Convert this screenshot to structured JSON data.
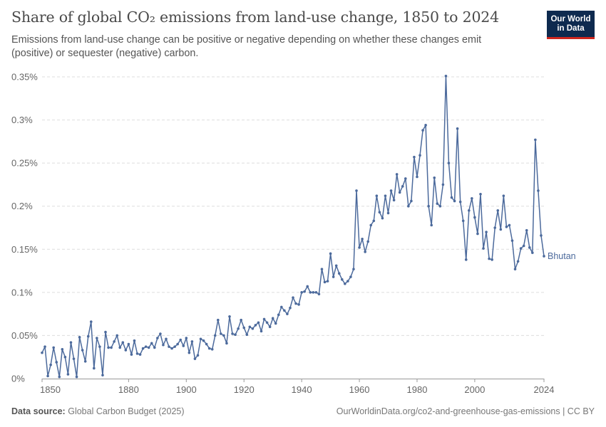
{
  "header": {
    "title": "Share of global CO₂ emissions from land-use change, 1850 to 2024",
    "subtitle": "Emissions from land-use change can be positive or negative depending on whether these changes emit (positive) or sequester (negative) carbon."
  },
  "logo": {
    "line1": "Our World",
    "line2": "in Data"
  },
  "footer": {
    "source_label": "Data source:",
    "source_value": "Global Carbon Budget (2025)",
    "url": "OurWorldinData.org/co2-and-greenhouse-gas-emissions | CC BY"
  },
  "colors": {
    "series": "#4c6a9c",
    "title": "#4a4a4a",
    "logo_bg": "#0e2a4f",
    "logo_accent": "#ce261e"
  },
  "chart_data": {
    "type": "line",
    "title": "Share of global CO₂ emissions from land-use change, 1850 to 2024",
    "xlabel": "",
    "ylabel": "",
    "xlim": [
      1850,
      2024
    ],
    "ylim": [
      0,
      0.35
    ],
    "x_ticks": [
      1850,
      1880,
      1900,
      1920,
      1940,
      1960,
      1980,
      2000,
      2024
    ],
    "y_ticks": [
      0,
      0.05,
      0.1,
      0.15,
      0.2,
      0.25,
      0.3,
      0.35
    ],
    "y_tick_labels": [
      "0%",
      "0.05%",
      "0.1%",
      "0.15%",
      "0.2%",
      "0.25%",
      "0.3%",
      "0.35%"
    ],
    "grid": true,
    "series": [
      {
        "name": "Bhutan",
        "x": [
          1850,
          1851,
          1852,
          1853,
          1854,
          1855,
          1856,
          1857,
          1858,
          1859,
          1860,
          1861,
          1862,
          1863,
          1864,
          1865,
          1866,
          1867,
          1868,
          1869,
          1870,
          1871,
          1872,
          1873,
          1874,
          1875,
          1876,
          1877,
          1878,
          1879,
          1880,
          1881,
          1882,
          1883,
          1884,
          1885,
          1886,
          1887,
          1888,
          1889,
          1890,
          1891,
          1892,
          1893,
          1894,
          1895,
          1896,
          1897,
          1898,
          1899,
          1900,
          1901,
          1902,
          1903,
          1904,
          1905,
          1906,
          1907,
          1908,
          1909,
          1910,
          1911,
          1912,
          1913,
          1914,
          1915,
          1916,
          1917,
          1918,
          1919,
          1920,
          1921,
          1922,
          1923,
          1924,
          1925,
          1926,
          1927,
          1928,
          1929,
          1930,
          1931,
          1932,
          1933,
          1934,
          1935,
          1936,
          1937,
          1938,
          1939,
          1940,
          1941,
          1942,
          1943,
          1944,
          1945,
          1946,
          1947,
          1948,
          1949,
          1950,
          1951,
          1952,
          1953,
          1954,
          1955,
          1956,
          1957,
          1958,
          1959,
          1960,
          1961,
          1962,
          1963,
          1964,
          1965,
          1966,
          1967,
          1968,
          1969,
          1970,
          1971,
          1972,
          1973,
          1974,
          1975,
          1976,
          1977,
          1978,
          1979,
          1980,
          1981,
          1982,
          1983,
          1984,
          1985,
          1986,
          1987,
          1988,
          1989,
          1990,
          1991,
          1992,
          1993,
          1994,
          1995,
          1996,
          1997,
          1998,
          1999,
          2000,
          2001,
          2002,
          2003,
          2004,
          2005,
          2006,
          2007,
          2008,
          2009,
          2010,
          2011,
          2012,
          2013,
          2014,
          2015,
          2016,
          2017,
          2018,
          2019,
          2020,
          2021,
          2022,
          2023,
          2024
        ],
        "values": [
          0.03,
          0.037,
          0.003,
          0.016,
          0.036,
          0.019,
          0.002,
          0.034,
          0.025,
          0.005,
          0.042,
          0.023,
          0.002,
          0.048,
          0.033,
          0.02,
          0.049,
          0.066,
          0.012,
          0.047,
          0.037,
          0.004,
          0.054,
          0.036,
          0.036,
          0.043,
          0.05,
          0.036,
          0.042,
          0.033,
          0.04,
          0.028,
          0.044,
          0.029,
          0.028,
          0.035,
          0.037,
          0.036,
          0.041,
          0.036,
          0.047,
          0.052,
          0.039,
          0.046,
          0.037,
          0.035,
          0.037,
          0.04,
          0.045,
          0.038,
          0.047,
          0.03,
          0.043,
          0.023,
          0.027,
          0.046,
          0.044,
          0.04,
          0.035,
          0.034,
          0.05,
          0.068,
          0.052,
          0.05,
          0.041,
          0.072,
          0.052,
          0.051,
          0.058,
          0.068,
          0.059,
          0.051,
          0.06,
          0.058,
          0.062,
          0.065,
          0.055,
          0.069,
          0.065,
          0.06,
          0.07,
          0.064,
          0.074,
          0.083,
          0.079,
          0.075,
          0.082,
          0.094,
          0.087,
          0.086,
          0.1,
          0.101,
          0.107,
          0.1,
          0.1,
          0.1,
          0.098,
          0.127,
          0.112,
          0.113,
          0.145,
          0.118,
          0.131,
          0.122,
          0.115,
          0.11,
          0.113,
          0.118,
          0.127,
          0.218,
          0.152,
          0.162,
          0.147,
          0.159,
          0.178,
          0.183,
          0.212,
          0.193,
          0.186,
          0.212,
          0.192,
          0.218,
          0.207,
          0.237,
          0.216,
          0.223,
          0.232,
          0.2,
          0.206,
          0.257,
          0.234,
          0.259,
          0.288,
          0.294,
          0.2,
          0.178,
          0.233,
          0.203,
          0.2,
          0.225,
          0.351,
          0.25,
          0.21,
          0.206,
          0.29,
          0.205,
          0.183,
          0.138,
          0.195,
          0.209,
          0.187,
          0.168,
          0.214,
          0.151,
          0.17,
          0.139,
          0.138,
          0.175,
          0.195,
          0.173,
          0.212,
          0.176,
          0.178,
          0.16,
          0.127,
          0.136,
          0.151,
          0.154,
          0.172,
          0.152,
          0.146,
          0.277,
          0.218,
          0.166,
          0.142
        ]
      }
    ]
  }
}
